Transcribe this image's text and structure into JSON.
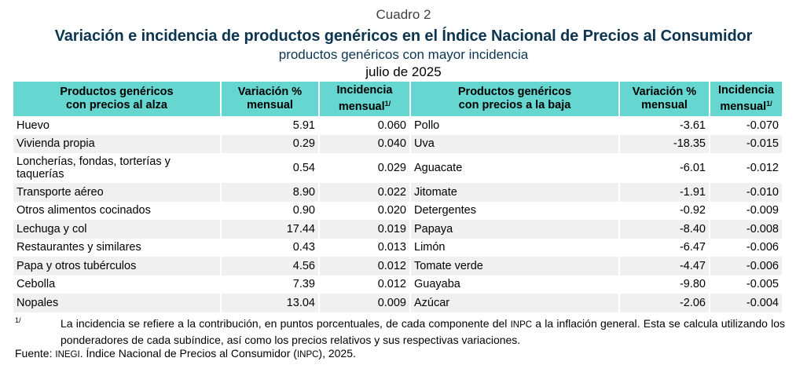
{
  "header": {
    "cuadro": "Cuadro 2",
    "title": "Variación e incidencia de productos genéricos en el Índice Nacional de Precios al Consumidor",
    "subtitle": "productos genéricos con mayor incidencia",
    "date": "julio de 2025"
  },
  "table": {
    "columns": {
      "up_name_line1": "Productos genéricos",
      "up_name_line2": "con precios al alza",
      "up_var_line1": "Variación %",
      "up_var_line2": "mensual",
      "up_inc_line1": "Incidencia",
      "up_inc_line2": "mensual",
      "up_inc_sup": "1/",
      "down_name_line1": "Productos genéricos",
      "down_name_line2": "con precios a la baja",
      "down_var_line1": "Variación %",
      "down_var_line2": "mensual",
      "down_inc_line1": "Incidencia",
      "down_inc_line2": "mensual",
      "down_inc_sup": "1/"
    },
    "rows": [
      {
        "up_name": "Huevo",
        "up_var": "5.91",
        "up_inc": "0.060",
        "down_name": "Pollo",
        "down_var": "-3.61",
        "down_inc": "-0.070"
      },
      {
        "up_name": "Vivienda propia",
        "up_var": "0.29",
        "up_inc": "0.040",
        "down_name": "Uva",
        "down_var": "-18.35",
        "down_inc": "-0.015"
      },
      {
        "up_name": "Loncherías, fondas, torterías y taquerías",
        "up_var": "0.54",
        "up_inc": "0.029",
        "down_name": "Aguacate",
        "down_var": "-6.01",
        "down_inc": "-0.012"
      },
      {
        "up_name": "Transporte aéreo",
        "up_var": "8.90",
        "up_inc": "0.022",
        "down_name": "Jitomate",
        "down_var": "-1.91",
        "down_inc": "-0.010"
      },
      {
        "up_name": "Otros alimentos cocinados",
        "up_var": "0.90",
        "up_inc": "0.020",
        "down_name": "Detergentes",
        "down_var": "-0.92",
        "down_inc": "-0.009"
      },
      {
        "up_name": "Lechuga y col",
        "up_var": "17.44",
        "up_inc": "0.019",
        "down_name": "Papaya",
        "down_var": "-8.40",
        "down_inc": "-0.008"
      },
      {
        "up_name": "Restaurantes y similares",
        "up_var": "0.43",
        "up_inc": "0.013",
        "down_name": "Limón",
        "down_var": "-6.47",
        "down_inc": "-0.006"
      },
      {
        "up_name": "Papa y otros tubérculos",
        "up_var": "4.56",
        "up_inc": "0.012",
        "down_name": "Tomate verde",
        "down_var": "-4.47",
        "down_inc": "-0.006"
      },
      {
        "up_name": "Cebolla",
        "up_var": "7.39",
        "up_inc": "0.012",
        "down_name": "Guayaba",
        "down_var": "-9.80",
        "down_inc": "-0.005"
      },
      {
        "up_name": "Nopales",
        "up_var": "13.04",
        "up_inc": "0.009",
        "down_name": "Azúcar",
        "down_var": "-2.06",
        "down_inc": "-0.004"
      }
    ]
  },
  "footnote": {
    "mark": "1/",
    "text_before": "La incidencia se refiere a la contribución, en puntos porcentuales, de cada componente del ",
    "text_abbr": "INPC",
    "text_after": " a la inflación general. Esta se calcula utilizando los ponderadores de cada subíndice, así como los precios relativos y sus respectivas variaciones."
  },
  "source": {
    "prefix": "Fuente: ",
    "org": "INEGI",
    "middle": ". Índice Nacional de Precios al Consumidor (",
    "abbr": "INPC",
    "suffix": "), 2025."
  },
  "colors": {
    "header_bg": "#66d6d0",
    "title": "#0b3550",
    "alt_row": "#f0f0f0"
  }
}
